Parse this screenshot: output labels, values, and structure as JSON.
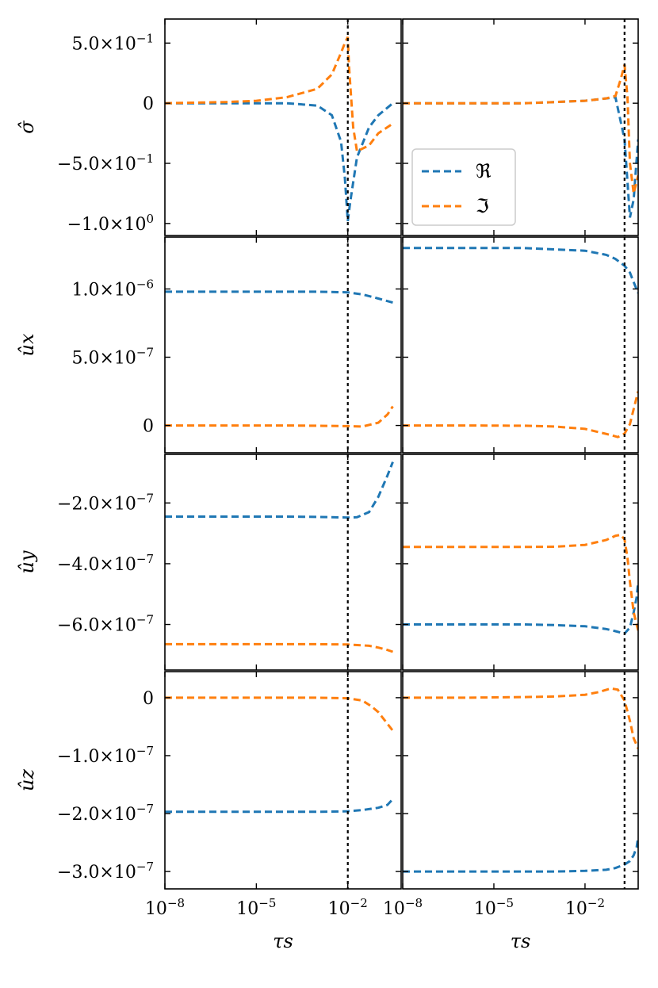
{
  "chart_data": {
    "type": "line",
    "layout": "4x2 grid of panels sharing x axis per column",
    "grid": false,
    "x_scale": "log",
    "xlabel": "τs",
    "legend": {
      "placement": "lower-left of top-right panel",
      "entries": [
        {
          "label": "ℜ",
          "color": "#1f77b4"
        },
        {
          "label": "ℑ",
          "color": "#ff7f0e"
        }
      ]
    },
    "series_colors": {
      "Re": "#1f77b4",
      "Im": "#ff7f0e"
    },
    "columns": [
      {
        "xlim": [
          1e-08,
          0.562
        ],
        "xticks": [
          1e-08,
          1e-05,
          0.01
        ],
        "xtick_labels": [
          "10−8",
          "10−5",
          "10−2"
        ],
        "vline": 0.01
      },
      {
        "xlim": [
          1e-08,
          0.562
        ],
        "xticks": [
          1e-08,
          1e-05,
          0.01
        ],
        "xtick_labels": [
          "10−8",
          "10−5",
          "10−2"
        ],
        "vline": 0.2
      }
    ],
    "rows": [
      {
        "ylabel": "σ̂",
        "ylim": [
          -1.1,
          0.7
        ],
        "yticks": [
          0.5,
          0,
          -0.5,
          -1.0
        ],
        "ytick_labels": [
          "5.0×10−1",
          "0",
          "−5.0×10−1",
          "−1.0×100"
        ],
        "panels": [
          {
            "series": [
              {
                "name": "ℜ",
                "x": [
                  1e-08,
                  1e-06,
                  1e-05,
                  0.0001,
                  0.001,
                  0.003,
                  0.006,
                  0.008,
                  0.01,
                  0.012,
                  0.02,
                  0.05,
                  0.1,
                  0.3
                ],
                "y": [
                  0,
                  0,
                  0,
                  0,
                  -0.02,
                  -0.1,
                  -0.32,
                  -0.62,
                  -0.98,
                  -0.82,
                  -0.45,
                  -0.2,
                  -0.1,
                  0.0
                ]
              },
              {
                "name": "ℑ",
                "x": [
                  1e-08,
                  1e-06,
                  1e-05,
                  0.0001,
                  0.001,
                  0.003,
                  0.006,
                  0.008,
                  0.01,
                  0.011,
                  0.015,
                  0.02,
                  0.05,
                  0.1,
                  0.3
                ],
                "y": [
                  0,
                  0.01,
                  0.02,
                  0.05,
                  0.12,
                  0.24,
                  0.42,
                  0.5,
                  0.55,
                  0.3,
                  -0.2,
                  -0.4,
                  -0.35,
                  -0.25,
                  -0.17
                ]
              }
            ]
          },
          {
            "series": [
              {
                "name": "ℜ",
                "x": [
                  1e-08,
                  1e-06,
                  0.0001,
                  0.001,
                  0.01,
                  0.05,
                  0.1,
                  0.2,
                  0.3,
                  0.4,
                  0.562
                ],
                "y": [
                  0,
                  0,
                  0.0,
                  0.01,
                  0.02,
                  0.04,
                  0.05,
                  -0.3,
                  -0.95,
                  -0.8,
                  -0.3
                ]
              },
              {
                "name": "ℑ",
                "x": [
                  1e-08,
                  1e-06,
                  0.0001,
                  0.001,
                  0.01,
                  0.05,
                  0.1,
                  0.15,
                  0.2,
                  0.25,
                  0.3,
                  0.4,
                  0.562
                ],
                "y": [
                  0,
                  0,
                  0.0,
                  0.01,
                  0.02,
                  0.04,
                  0.06,
                  0.2,
                  0.32,
                  0.05,
                  -0.5,
                  -0.75,
                  -0.6
                ]
              }
            ]
          }
        ]
      },
      {
        "ylabel": "ûx",
        "ylim": [
          -2e-07,
          1.38e-06
        ],
        "yticks": [
          1e-06,
          5e-07,
          0
        ],
        "ytick_labels": [
          "1.0×10−6",
          "5.0×10−7",
          "0"
        ],
        "panels": [
          {
            "series": [
              {
                "name": "ℜ",
                "x": [
                  1e-08,
                  1e-06,
                  0.0001,
                  0.001,
                  0.01,
                  0.03,
                  0.1,
                  0.3
                ],
                "y": [
                  9.8e-07,
                  9.8e-07,
                  9.8e-07,
                  9.8e-07,
                  9.75e-07,
                  9.6e-07,
                  9.3e-07,
                  9e-07
                ]
              },
              {
                "name": "ℑ",
                "x": [
                  1e-08,
                  1e-06,
                  0.0001,
                  0.001,
                  0.01,
                  0.03,
                  0.1,
                  0.2,
                  0.3
                ],
                "y": [
                  0,
                  0,
                  0,
                  -2e-09,
                  -5e-09,
                  -8e-09,
                  2e-08,
                  8e-08,
                  1.4e-07
                ]
              }
            ]
          },
          {
            "series": [
              {
                "name": "ℜ",
                "x": [
                  1e-08,
                  1e-06,
                  0.0001,
                  0.001,
                  0.01,
                  0.05,
                  0.1,
                  0.2,
                  0.3,
                  0.4,
                  0.562
                ],
                "y": [
                  1.3e-06,
                  1.3e-06,
                  1.3e-06,
                  1.29e-06,
                  1.28e-06,
                  1.25e-06,
                  1.22e-06,
                  1.17e-06,
                  1.12e-06,
                  1.05e-06,
                  9.7e-07
                ]
              },
              {
                "name": "ℑ",
                "x": [
                  1e-08,
                  1e-06,
                  0.0001,
                  0.001,
                  0.01,
                  0.03,
                  0.07,
                  0.12,
                  0.2,
                  0.3,
                  0.4,
                  0.562
                ],
                "y": [
                  0,
                  0,
                  -2e-09,
                  -8e-09,
                  -2.5e-08,
                  -5e-08,
                  -7e-08,
                  -8.5e-08,
                  -6e-08,
                  1e-08,
                  1.2e-07,
                  2.5e-07
                ]
              }
            ]
          }
        ]
      },
      {
        "ylabel": "ûy",
        "ylim": [
          -7.5e-07,
          -4e-08
        ],
        "yticks": [
          -2e-07,
          -4e-07,
          -6e-07
        ],
        "ytick_labels": [
          "−2.0×10−7",
          "−4.0×10−7",
          "−6.0×10−7"
        ],
        "panels": [
          {
            "series": [
              {
                "name": "ℜ",
                "x": [
                  1e-08,
                  1e-06,
                  0.0001,
                  0.001,
                  0.01,
                  0.02,
                  0.05,
                  0.1,
                  0.2,
                  0.3
                ],
                "y": [
                  -2.45e-07,
                  -2.45e-07,
                  -2.45e-07,
                  -2.46e-07,
                  -2.48e-07,
                  -2.47e-07,
                  -2.3e-07,
                  -1.8e-07,
                  -1.1e-07,
                  -6.5e-08
                ]
              },
              {
                "name": "ℑ",
                "x": [
                  1e-08,
                  1e-06,
                  0.0001,
                  0.001,
                  0.01,
                  0.05,
                  0.1,
                  0.2,
                  0.3
                ],
                "y": [
                  -6.65e-07,
                  -6.65e-07,
                  -6.65e-07,
                  -6.65e-07,
                  -6.66e-07,
                  -6.7e-07,
                  -6.76e-07,
                  -6.84e-07,
                  -6.9e-07
                ]
              }
            ]
          },
          {
            "series": [
              {
                "name": "ℜ",
                "x": [
                  1e-08,
                  1e-06,
                  0.0001,
                  0.001,
                  0.01,
                  0.05,
                  0.1,
                  0.2,
                  0.3,
                  0.4,
                  0.5,
                  0.562
                ],
                "y": [
                  -6e-07,
                  -6e-07,
                  -6e-07,
                  -6.02e-07,
                  -6.06e-07,
                  -6.15e-07,
                  -6.22e-07,
                  -6.3e-07,
                  -6.1e-07,
                  -5.6e-07,
                  -5.1e-07,
                  -4.6e-07
                ]
              },
              {
                "name": "ℑ",
                "x": [
                  1e-08,
                  1e-06,
                  0.0001,
                  0.001,
                  0.01,
                  0.05,
                  0.1,
                  0.15,
                  0.2,
                  0.25,
                  0.3,
                  0.4,
                  0.562
                ],
                "y": [
                  -3.45e-07,
                  -3.45e-07,
                  -3.45e-07,
                  -3.44e-07,
                  -3.38e-07,
                  -3.22e-07,
                  -3.08e-07,
                  -3.05e-07,
                  -3.2e-07,
                  -3.8e-07,
                  -4.6e-07,
                  -5.6e-07,
                  -6.2e-07
                ]
              }
            ]
          }
        ]
      },
      {
        "ylabel": "ûz",
        "ylim": [
          -3.3e-07,
          4.5e-08
        ],
        "yticks": [
          0,
          -1e-07,
          -2e-07,
          -3e-07
        ],
        "ytick_labels": [
          "0",
          "−1.0×10−7",
          "−2.0×10−7",
          "−3.0×10−7"
        ],
        "panels": [
          {
            "series": [
              {
                "name": "ℜ",
                "x": [
                  1e-08,
                  1e-06,
                  0.0001,
                  0.001,
                  0.01,
                  0.03,
                  0.1,
                  0.2,
                  0.3
                ],
                "y": [
                  -1.97e-07,
                  -1.97e-07,
                  -1.97e-07,
                  -1.97e-07,
                  -1.96e-07,
                  -1.94e-07,
                  -1.9e-07,
                  -1.85e-07,
                  -1.75e-07
                ]
              },
              {
                "name": "ℑ",
                "x": [
                  1e-08,
                  1e-06,
                  0.0001,
                  0.001,
                  0.01,
                  0.03,
                  0.06,
                  0.1,
                  0.2,
                  0.3
                ],
                "y": [
                  0,
                  0,
                  0,
                  0,
                  -1e-09,
                  -5e-09,
                  -1.5e-08,
                  -2.5e-08,
                  -4.5e-08,
                  -5.7e-08
                ]
              }
            ]
          },
          {
            "series": [
              {
                "name": "ℜ",
                "x": [
                  1e-08,
                  1e-06,
                  0.0001,
                  0.001,
                  0.01,
                  0.05,
                  0.1,
                  0.2,
                  0.3,
                  0.4,
                  0.5,
                  0.562
                ],
                "y": [
                  -3e-07,
                  -3e-07,
                  -3e-07,
                  -3e-07,
                  -2.99e-07,
                  -2.97e-07,
                  -2.94e-07,
                  -2.88e-07,
                  -2.82e-07,
                  -2.72e-07,
                  -2.58e-07,
                  -2.4e-07
                ]
              },
              {
                "name": "ℑ",
                "x": [
                  1e-08,
                  1e-06,
                  0.0001,
                  0.001,
                  0.01,
                  0.03,
                  0.07,
                  0.12,
                  0.2,
                  0.3,
                  0.4,
                  0.562
                ],
                "y": [
                  0,
                  0,
                  1e-09,
                  2e-09,
                  5e-09,
                  1e-08,
                  1.6e-08,
                  1.4e-08,
                  -5e-09,
                  -4e-08,
                  -7e-08,
                  -8.8e-08
                ]
              }
            ]
          }
        ]
      }
    ]
  }
}
